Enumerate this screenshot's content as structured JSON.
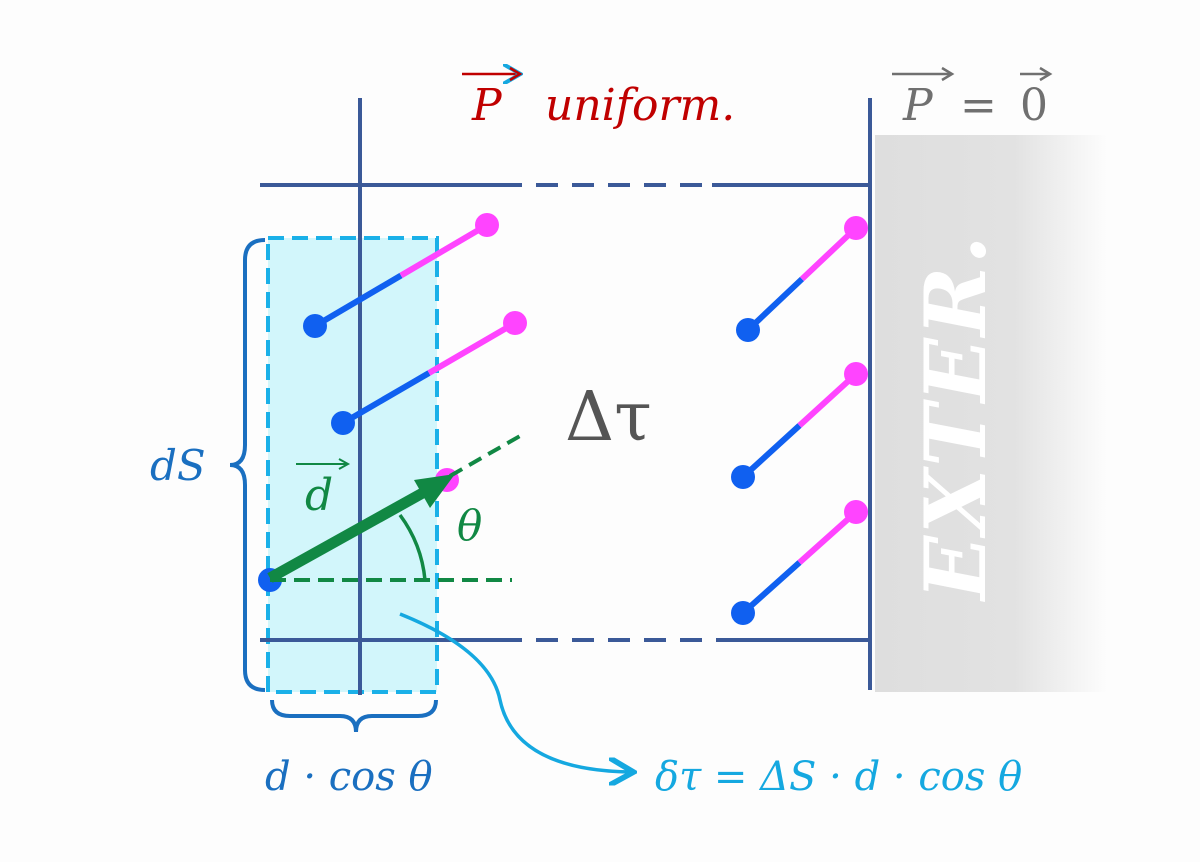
{
  "title": {
    "symbol": "P",
    "text": "uniform.",
    "color": "#c00000"
  },
  "exterior_condition": {
    "lhs": "P",
    "eq": "=",
    "rhs": "0",
    "color": "#707070"
  },
  "exterior_label": "EXTER.",
  "volume_label": "Δτ",
  "surface_label": "dS",
  "dipole_vector_label": "d",
  "angle_label": "θ",
  "width_label": "d · cos θ",
  "formula": "δτ = ΔS · d · cos θ",
  "colors": {
    "frame": "#3b5998",
    "dipole_negative": "#1060f0",
    "dipole_positive": "#ff44ff",
    "dipole_vector": "#118844",
    "slab_fill": "#d2f6fb",
    "slab_border": "#1ab0e8",
    "formula": "#15a8e0",
    "brace": "#1a6fc0",
    "exterior": "#e0e0e0"
  }
}
